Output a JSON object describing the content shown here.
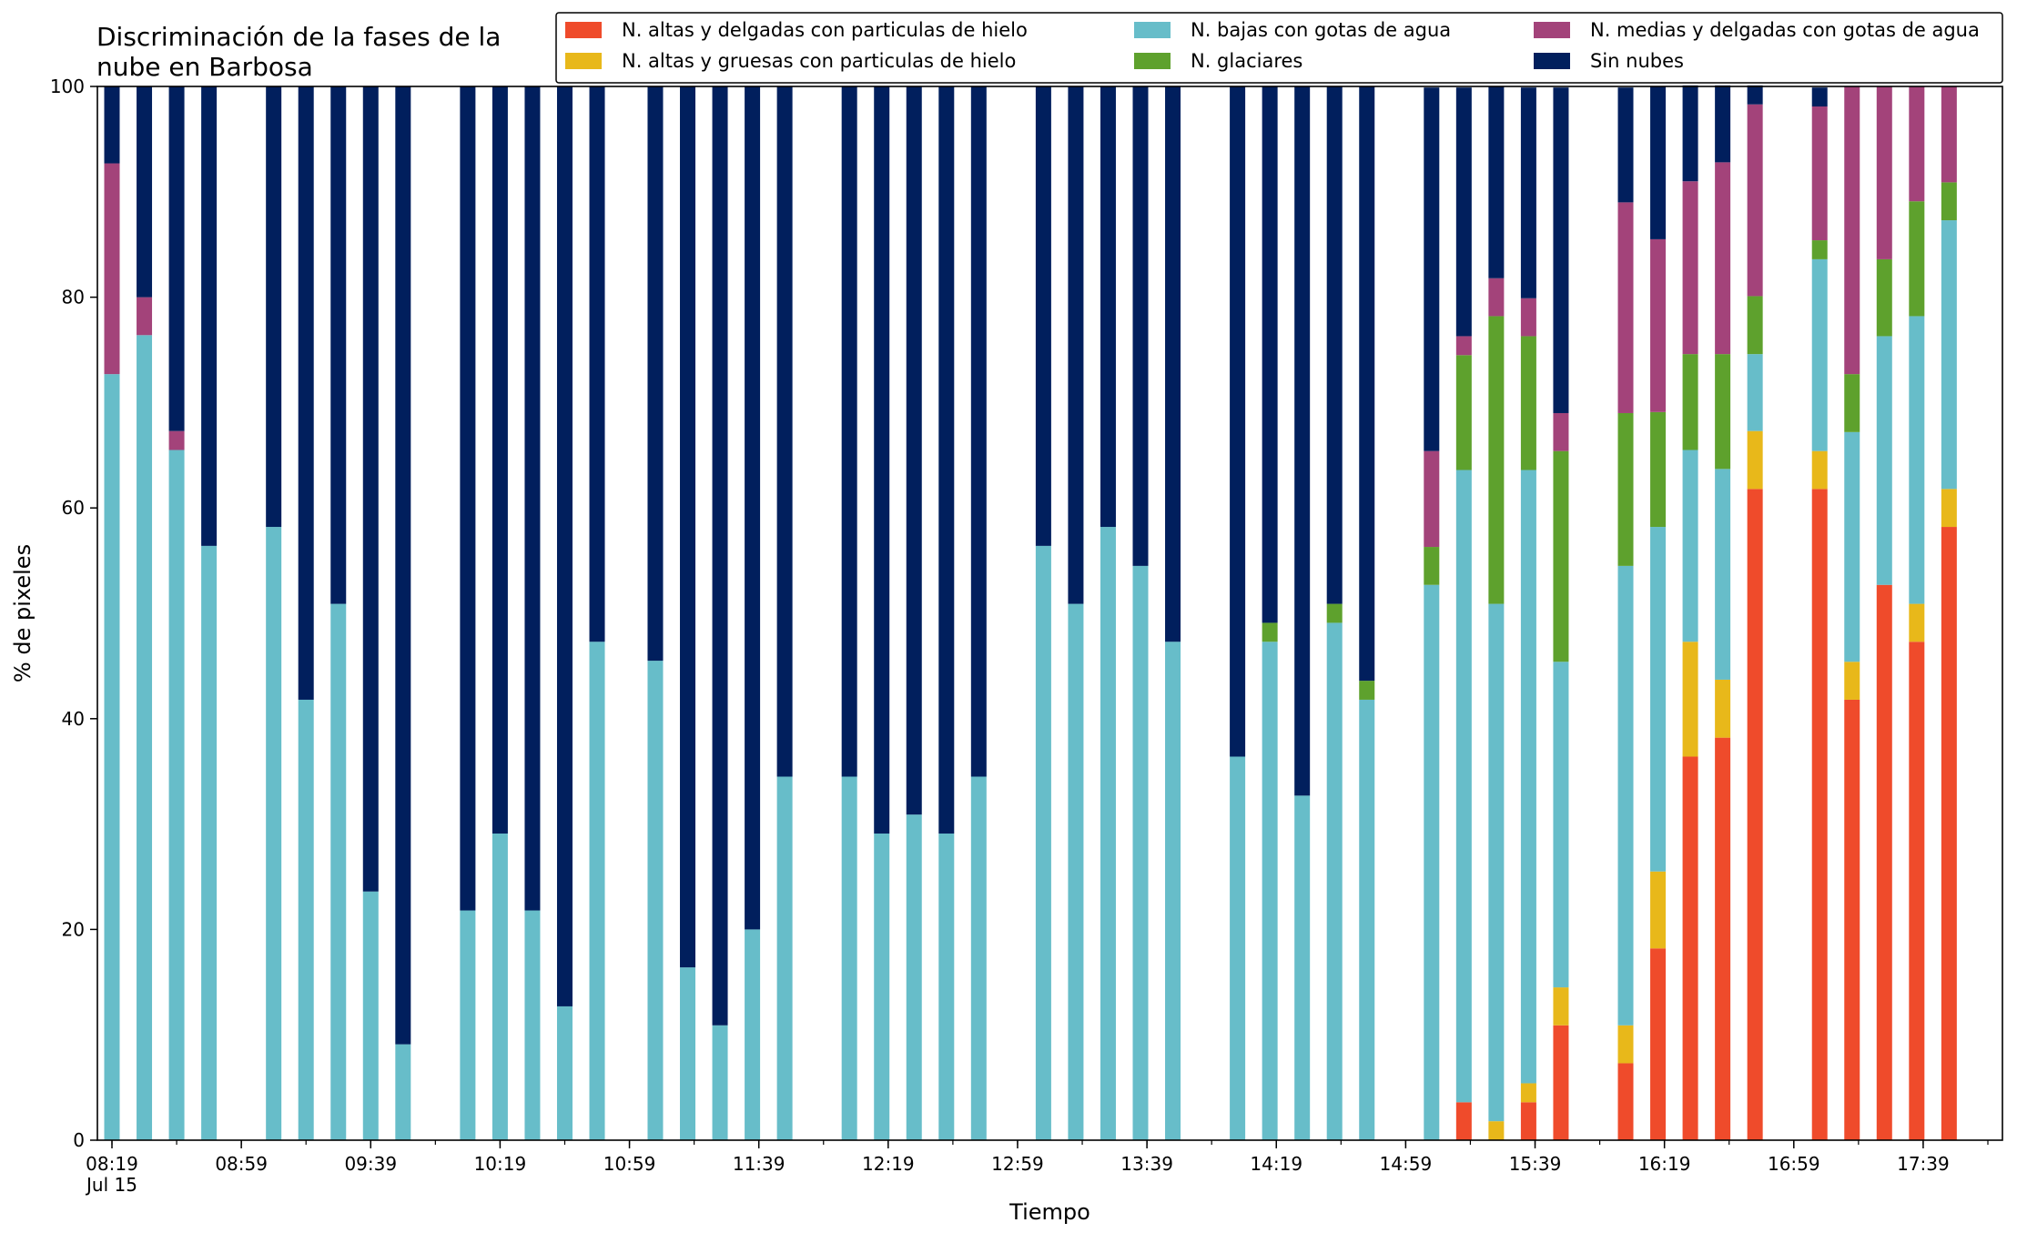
{
  "chart_data": {
    "type": "bar",
    "stacked": true,
    "title": "Discriminación de la fases de la\nnube en Barbosa",
    "xlabel": "Tiempo",
    "ylabel": "% de pixeles",
    "ylim": [
      0,
      100
    ],
    "yticks": [
      0,
      20,
      40,
      60,
      80,
      100
    ],
    "x_range": [
      "08:19",
      "17:59"
    ],
    "x_tick_labels": [
      {
        "time": "08:19",
        "label": "08:19",
        "sub": "Jul 15"
      },
      {
        "time": "08:59",
        "label": "08:59"
      },
      {
        "time": "09:39",
        "label": "09:39"
      },
      {
        "time": "10:19",
        "label": "10:19"
      },
      {
        "time": "10:59",
        "label": "10:59"
      },
      {
        "time": "11:39",
        "label": "11:39"
      },
      {
        "time": "12:19",
        "label": "12:19"
      },
      {
        "time": "12:59",
        "label": "12:59"
      },
      {
        "time": "13:39",
        "label": "13:39"
      },
      {
        "time": "14:19",
        "label": "14:19"
      },
      {
        "time": "14:59",
        "label": "14:59"
      },
      {
        "time": "15:39",
        "label": "15:39"
      },
      {
        "time": "16:19",
        "label": "16:19"
      },
      {
        "time": "16:59",
        "label": "16:59"
      },
      {
        "time": "17:39",
        "label": "17:39"
      }
    ],
    "legend_position": "top-right",
    "series": [
      {
        "name": "N. altas y delgadas con particulas de hielo",
        "color": "#ef4b2b"
      },
      {
        "name": "N. altas y gruesas con particulas de hielo",
        "color": "#e8b81a"
      },
      {
        "name": "N. bajas con gotas de agua",
        "color": "#67bdc9"
      },
      {
        "name": "N. glaciares",
        "color": "#5ea12d"
      },
      {
        "name": "N. medias y delgadas con gotas de agua",
        "color": "#a3437a"
      },
      {
        "name": "Sin nubes",
        "color": "#011f5d"
      }
    ],
    "bars": [
      {
        "time": "08:19",
        "values": [
          0,
          0,
          72.7,
          0,
          20.0,
          7.3
        ]
      },
      {
        "time": "08:29",
        "values": [
          0,
          0,
          76.4,
          0,
          3.6,
          20.0
        ]
      },
      {
        "time": "08:39",
        "values": [
          0,
          0,
          65.5,
          0,
          1.8,
          32.7
        ]
      },
      {
        "time": "08:49",
        "values": [
          0,
          0,
          56.4,
          0,
          0,
          43.6
        ]
      },
      {
        "time": "09:09",
        "values": [
          0,
          0,
          58.2,
          0,
          0,
          41.8
        ]
      },
      {
        "time": "09:19",
        "values": [
          0,
          0,
          41.8,
          0,
          0,
          58.2
        ]
      },
      {
        "time": "09:29",
        "values": [
          0,
          0,
          50.9,
          0,
          0,
          49.1
        ]
      },
      {
        "time": "09:39",
        "values": [
          0,
          0,
          23.6,
          0,
          0,
          76.4
        ]
      },
      {
        "time": "09:49",
        "values": [
          0,
          0,
          9.1,
          0,
          0,
          90.9
        ]
      },
      {
        "time": "10:09",
        "values": [
          0,
          0,
          21.8,
          0,
          0,
          78.2
        ]
      },
      {
        "time": "10:19",
        "values": [
          0,
          0,
          29.1,
          0,
          0,
          70.9
        ]
      },
      {
        "time": "10:29",
        "values": [
          0,
          0,
          21.8,
          0,
          0,
          78.2
        ]
      },
      {
        "time": "10:39",
        "values": [
          0,
          0,
          12.7,
          0,
          0,
          87.3
        ]
      },
      {
        "time": "10:49",
        "values": [
          0,
          0,
          47.3,
          0,
          0,
          52.7
        ]
      },
      {
        "time": "11:07",
        "values": [
          0,
          0,
          45.5,
          0,
          0,
          54.5
        ]
      },
      {
        "time": "11:17",
        "values": [
          0,
          0,
          16.4,
          0,
          0,
          83.6
        ]
      },
      {
        "time": "11:27",
        "values": [
          0,
          0,
          10.9,
          0,
          0,
          89.1
        ]
      },
      {
        "time": "11:37",
        "values": [
          0,
          0,
          20.0,
          0,
          0,
          80.0
        ]
      },
      {
        "time": "11:47",
        "values": [
          0,
          0,
          34.5,
          0,
          0,
          65.5
        ]
      },
      {
        "time": "12:07",
        "values": [
          0,
          0,
          34.5,
          0,
          0,
          65.5
        ]
      },
      {
        "time": "12:17",
        "values": [
          0,
          0,
          29.1,
          0,
          0,
          70.9
        ]
      },
      {
        "time": "12:27",
        "values": [
          0,
          0,
          30.9,
          0,
          0,
          69.1
        ]
      },
      {
        "time": "12:37",
        "values": [
          0,
          0,
          29.1,
          0,
          0,
          70.9
        ]
      },
      {
        "time": "12:47",
        "values": [
          0,
          0,
          34.5,
          0,
          0,
          65.5
        ]
      },
      {
        "time": "13:07",
        "values": [
          0,
          0,
          56.4,
          0,
          0,
          43.6
        ]
      },
      {
        "time": "13:17",
        "values": [
          0,
          0,
          50.9,
          0,
          0,
          49.1
        ]
      },
      {
        "time": "13:27",
        "values": [
          0,
          0,
          58.2,
          0,
          0,
          41.8
        ]
      },
      {
        "time": "13:37",
        "values": [
          0,
          0,
          54.5,
          0,
          0,
          45.5
        ]
      },
      {
        "time": "13:47",
        "values": [
          0,
          0,
          47.3,
          0,
          0,
          52.7
        ]
      },
      {
        "time": "14:07",
        "values": [
          0,
          0,
          36.4,
          0,
          0,
          63.6
        ]
      },
      {
        "time": "14:17",
        "values": [
          0,
          0,
          47.3,
          1.8,
          0,
          50.9
        ]
      },
      {
        "time": "14:27",
        "values": [
          0,
          0,
          32.7,
          0,
          0,
          67.3
        ]
      },
      {
        "time": "14:37",
        "values": [
          0,
          0,
          49.1,
          1.8,
          0,
          49.1
        ]
      },
      {
        "time": "14:47",
        "values": [
          0,
          0,
          41.8,
          1.8,
          0,
          56.4
        ]
      },
      {
        "time": "15:07",
        "values": [
          0,
          0,
          52.7,
          3.6,
          9.1,
          34.5
        ]
      },
      {
        "time": "15:17",
        "values": [
          3.6,
          0,
          60.0,
          10.9,
          1.8,
          23.6
        ]
      },
      {
        "time": "15:27",
        "values": [
          0,
          1.8,
          49.1,
          27.3,
          3.6,
          18.2
        ]
      },
      {
        "time": "15:37",
        "values": [
          3.6,
          1.8,
          58.2,
          12.7,
          3.6,
          20.0
        ]
      },
      {
        "time": "15:47",
        "values": [
          10.9,
          3.6,
          30.9,
          20.0,
          3.6,
          30.9
        ]
      },
      {
        "time": "16:07",
        "values": [
          7.3,
          3.6,
          43.6,
          14.5,
          20.0,
          10.9
        ]
      },
      {
        "time": "16:17",
        "values": [
          18.2,
          7.3,
          32.7,
          10.9,
          16.4,
          14.5
        ]
      },
      {
        "time": "16:27",
        "values": [
          36.4,
          10.9,
          18.2,
          9.1,
          16.4,
          9.1
        ]
      },
      {
        "time": "16:37",
        "values": [
          38.2,
          5.5,
          20.0,
          10.9,
          18.2,
          7.3
        ]
      },
      {
        "time": "16:47",
        "values": [
          61.8,
          5.5,
          7.3,
          5.5,
          18.2,
          1.8
        ]
      },
      {
        "time": "17:07",
        "values": [
          61.8,
          3.6,
          18.2,
          1.8,
          12.7,
          1.8
        ]
      },
      {
        "time": "17:17",
        "values": [
          41.8,
          3.6,
          21.8,
          5.5,
          27.3,
          0
        ]
      },
      {
        "time": "17:27",
        "values": [
          52.7,
          0,
          23.6,
          7.3,
          16.4,
          0
        ]
      },
      {
        "time": "17:37",
        "values": [
          47.3,
          3.6,
          27.3,
          10.9,
          10.9,
          0
        ]
      },
      {
        "time": "17:47",
        "values": [
          58.2,
          3.6,
          25.5,
          3.6,
          9.1,
          0
        ]
      }
    ]
  }
}
